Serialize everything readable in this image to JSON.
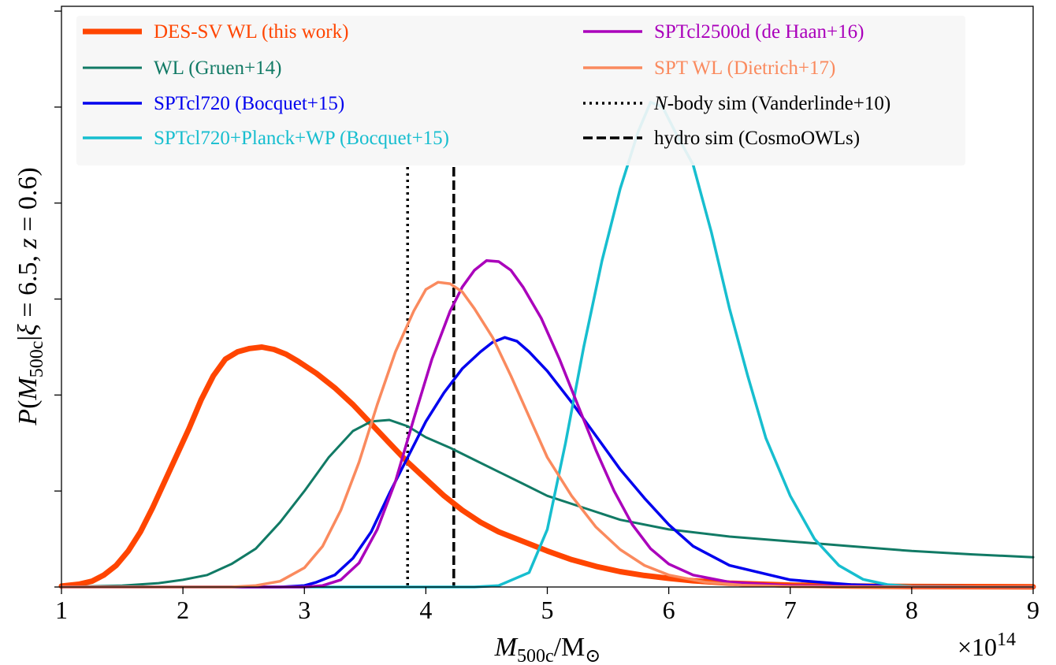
{
  "chart_data": {
    "type": "line",
    "xlabel": "M_500c/M_⊙",
    "ylabel": "P(M_500c|ξ = 6.5, z = 0.6)",
    "x_multiplier": "×10^14",
    "xlim": [
      1,
      9
    ],
    "ylim": [
      0,
      1.21
    ],
    "x_ticks": [
      1,
      2,
      3,
      4,
      5,
      6,
      7,
      8,
      9
    ],
    "x_tick_labels": [
      "1",
      "2",
      "3",
      "4",
      "5",
      "6",
      "7",
      "8",
      "9"
    ],
    "y_ticks": [
      0,
      0.2,
      0.4,
      0.6,
      0.8,
      1.0,
      1.2
    ],
    "y_tick_labels_shown": false,
    "legend_position": "top",
    "series": [
      {
        "name": "DES-SV WL (this work)",
        "color": "#FF4500",
        "style": "solid",
        "width": 7,
        "x": [
          1.0,
          1.15,
          1.25,
          1.35,
          1.45,
          1.55,
          1.65,
          1.75,
          1.85,
          1.95,
          2.05,
          2.15,
          2.25,
          2.35,
          2.45,
          2.55,
          2.65,
          2.75,
          2.85,
          2.95,
          3.1,
          3.25,
          3.4,
          3.55,
          3.7,
          3.85,
          4.0,
          4.15,
          4.3,
          4.45,
          4.6,
          4.8,
          5.0,
          5.2,
          5.4,
          5.6,
          5.8,
          6.0,
          6.2,
          6.5,
          7.0,
          7.5,
          8.0,
          9.0
        ],
        "y": [
          0.002,
          0.006,
          0.012,
          0.025,
          0.045,
          0.075,
          0.115,
          0.165,
          0.22,
          0.275,
          0.33,
          0.39,
          0.44,
          0.475,
          0.49,
          0.497,
          0.5,
          0.495,
          0.485,
          0.47,
          0.445,
          0.415,
          0.38,
          0.34,
          0.3,
          0.26,
          0.225,
          0.19,
          0.16,
          0.135,
          0.115,
          0.095,
          0.075,
          0.057,
          0.043,
          0.032,
          0.024,
          0.018,
          0.013,
          0.008,
          0.004,
          0.002,
          0.001,
          0.0005
        ]
      },
      {
        "name": "WL (Gruen+14)",
        "color": "#117A65",
        "style": "solid",
        "width": 3,
        "x": [
          1.0,
          1.5,
          1.8,
          2.0,
          2.2,
          2.4,
          2.6,
          2.8,
          3.0,
          3.2,
          3.4,
          3.55,
          3.7,
          3.85,
          4.0,
          4.2,
          4.4,
          4.6,
          4.8,
          5.0,
          5.3,
          5.6,
          6.0,
          6.5,
          7.0,
          7.5,
          8.0,
          8.5,
          9.0
        ],
        "y": [
          0.0,
          0.003,
          0.008,
          0.015,
          0.025,
          0.048,
          0.08,
          0.135,
          0.2,
          0.27,
          0.325,
          0.345,
          0.348,
          0.335,
          0.312,
          0.29,
          0.265,
          0.24,
          0.215,
          0.19,
          0.165,
          0.14,
          0.12,
          0.105,
          0.095,
          0.085,
          0.075,
          0.068,
          0.062
        ]
      },
      {
        "name": "SPTcl720 (Bocquet+15)",
        "color": "#0000EE",
        "style": "solid",
        "width": 3.5,
        "x": [
          1.0,
          2.8,
          3.0,
          3.1,
          3.25,
          3.4,
          3.55,
          3.7,
          3.85,
          4.0,
          4.15,
          4.3,
          4.45,
          4.55,
          4.65,
          4.75,
          4.85,
          5.0,
          5.2,
          5.4,
          5.6,
          5.8,
          6.0,
          6.2,
          6.5,
          7.0,
          7.5,
          8.0,
          9.0
        ],
        "y": [
          0.0,
          0.0,
          0.003,
          0.01,
          0.025,
          0.06,
          0.115,
          0.195,
          0.27,
          0.345,
          0.405,
          0.455,
          0.49,
          0.51,
          0.52,
          0.512,
          0.49,
          0.45,
          0.385,
          0.315,
          0.245,
          0.185,
          0.13,
          0.085,
          0.045,
          0.015,
          0.005,
          0.001,
          0.0
        ]
      },
      {
        "name": "SPTcl720+Planck+WP (Bocquet+15)",
        "color": "#17BECF",
        "style": "solid",
        "width": 3.5,
        "x": [
          1.0,
          4.4,
          4.6,
          4.85,
          5.0,
          5.15,
          5.3,
          5.45,
          5.6,
          5.75,
          5.85,
          5.95,
          6.05,
          6.2,
          6.35,
          6.5,
          6.65,
          6.8,
          7.0,
          7.2,
          7.4,
          7.6,
          7.8,
          8.0,
          9.0
        ],
        "y": [
          0.0,
          0.0,
          0.003,
          0.03,
          0.12,
          0.3,
          0.5,
          0.68,
          0.83,
          0.95,
          1.01,
          1.0,
          0.95,
          0.88,
          0.74,
          0.58,
          0.44,
          0.31,
          0.19,
          0.1,
          0.045,
          0.016,
          0.005,
          0.001,
          0.0
        ]
      },
      {
        "name": "SPTcl2500d (de Haan+16)",
        "color": "#AA00BB",
        "style": "solid",
        "width": 3.5,
        "x": [
          1.0,
          3.0,
          3.15,
          3.3,
          3.45,
          3.6,
          3.75,
          3.9,
          4.05,
          4.2,
          4.3,
          4.4,
          4.5,
          4.6,
          4.7,
          4.8,
          4.95,
          5.1,
          5.25,
          5.4,
          5.55,
          5.7,
          5.85,
          6.0,
          6.2,
          6.5,
          7.0,
          8.0,
          9.0
        ],
        "y": [
          0.0,
          0.0,
          0.003,
          0.015,
          0.05,
          0.12,
          0.22,
          0.35,
          0.475,
          0.575,
          0.625,
          0.66,
          0.68,
          0.678,
          0.66,
          0.625,
          0.56,
          0.475,
          0.38,
          0.285,
          0.2,
          0.13,
          0.08,
          0.048,
          0.025,
          0.01,
          0.003,
          0.0,
          0.0
        ]
      },
      {
        "name": "SPT WL (Dietrich+17)",
        "color": "#FA8A5E",
        "style": "solid",
        "width": 3.5,
        "x": [
          1.0,
          2.4,
          2.6,
          2.8,
          3.0,
          3.15,
          3.3,
          3.45,
          3.6,
          3.75,
          3.9,
          4.0,
          4.1,
          4.2,
          4.3,
          4.4,
          4.55,
          4.7,
          4.85,
          5.0,
          5.2,
          5.4,
          5.6,
          5.8,
          6.0,
          6.3,
          6.6,
          7.0,
          8.0,
          9.0
        ],
        "y": [
          0.0,
          0.0,
          0.003,
          0.012,
          0.04,
          0.085,
          0.16,
          0.26,
          0.38,
          0.49,
          0.575,
          0.62,
          0.635,
          0.632,
          0.615,
          0.58,
          0.52,
          0.44,
          0.355,
          0.27,
          0.19,
          0.125,
          0.078,
          0.045,
          0.025,
          0.01,
          0.004,
          0.001,
          0.0,
          0.0
        ]
      }
    ],
    "vertical_lines": [
      {
        "name": "N-body sim (Vanderlinde+10)",
        "label_italic": "N",
        "label_rest": "-body sim (Vanderlinde+10)",
        "x": 3.85,
        "color": "#000000",
        "style": "dotted"
      },
      {
        "name": "hydro sim (CosmoOWLs)",
        "x": 4.23,
        "color": "#000000",
        "style": "dashed"
      }
    ],
    "legend_columns": [
      [
        "DES-SV WL (this work)",
        "WL (Gruen+14)",
        "SPTcl720 (Bocquet+15)",
        "SPTcl720+Planck+WP (Bocquet+15)"
      ],
      [
        "SPTcl2500d (de Haan+16)",
        "SPT WL (Dietrich+17)",
        "N-body sim (Vanderlinde+10)",
        "hydro sim (CosmoOWLs)"
      ]
    ]
  }
}
